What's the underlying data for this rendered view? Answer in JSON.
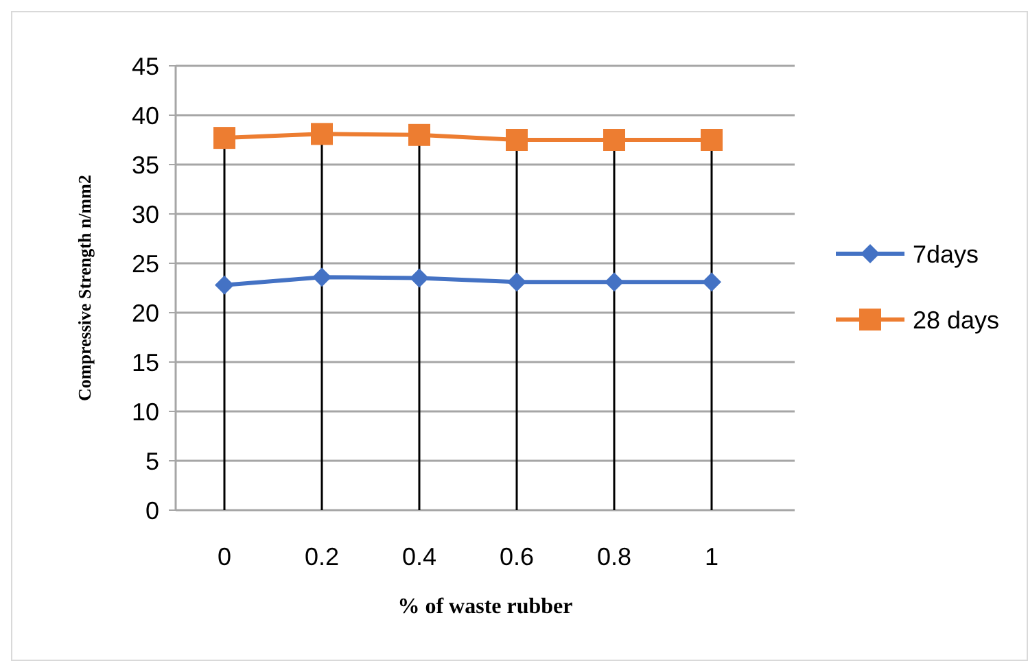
{
  "chart_data": {
    "type": "line",
    "xlabel": "% of waste rubber",
    "ylabel": "Compressive Strength n/mm2",
    "categories": [
      "0",
      "0.2",
      "0.4",
      "0.6",
      "0.8",
      "1"
    ],
    "series": [
      {
        "name": "7days",
        "color": "#4472c4",
        "values": [
          22.8,
          23.6,
          23.5,
          23.1,
          23.1,
          23.1
        ],
        "marker": "diamond"
      },
      {
        "name": "28 days",
        "color": "#ed7d31",
        "values": [
          37.7,
          38.1,
          38.0,
          37.5,
          37.5,
          37.5
        ],
        "marker": "square"
      }
    ],
    "ylim": [
      0,
      45
    ],
    "yticks": [
      0,
      5,
      10,
      15,
      20,
      25,
      30,
      35,
      40,
      45
    ],
    "grid": true,
    "legend": "right"
  }
}
